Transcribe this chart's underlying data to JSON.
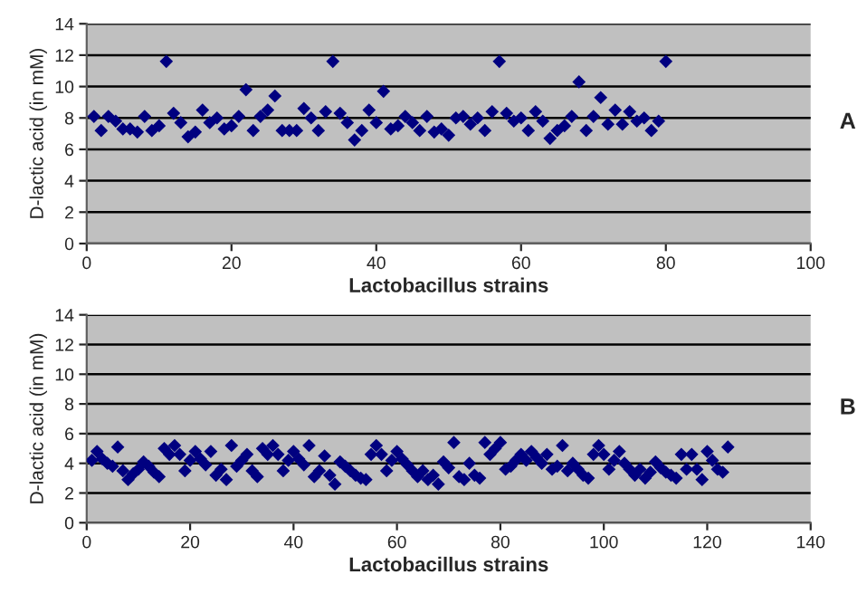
{
  "chart_data": [
    {
      "type": "scatter",
      "xlabel": "Lactobacillus strains",
      "ylabel": "D-lactic acid (in mM)",
      "annotations": [
        "A"
      ],
      "xlim": [
        0,
        100
      ],
      "ylim": [
        0,
        14
      ],
      "xticks": [
        0,
        20,
        40,
        60,
        80,
        100
      ],
      "yticks": [
        0,
        2,
        4,
        6,
        8,
        10,
        12,
        14
      ],
      "grid": "y",
      "marker": "diamond",
      "series": [
        {
          "color": "#000080",
          "x": [
            1,
            2,
            3,
            4,
            5,
            6,
            7,
            8,
            9,
            10,
            11,
            12,
            13,
            14,
            15,
            16,
            17,
            18,
            19,
            20,
            21,
            22,
            23,
            24,
            25,
            26,
            27,
            28,
            29,
            30,
            31,
            32,
            33,
            34,
            35,
            36,
            37,
            38,
            39,
            40,
            41,
            42,
            43,
            44,
            45,
            46,
            47,
            48,
            49,
            50,
            51,
            52,
            53,
            54,
            55,
            56,
            57,
            58,
            59,
            60,
            61,
            62,
            63,
            64,
            65,
            66,
            67,
            68,
            69,
            70,
            71,
            72,
            73,
            74,
            75,
            76,
            77,
            78,
            79,
            80
          ],
          "values": [
            8.1,
            7.2,
            8.1,
            7.8,
            7.3,
            7.3,
            7.1,
            8.1,
            7.2,
            7.5,
            11.6,
            8.3,
            7.7,
            6.8,
            7.1,
            8.5,
            7.7,
            8.0,
            7.3,
            7.5,
            8.1,
            9.8,
            7.2,
            8.1,
            8.5,
            9.4,
            7.2,
            7.2,
            7.2,
            8.6,
            8.0,
            7.2,
            8.4,
            11.6,
            8.3,
            7.7,
            6.6,
            7.2,
            8.5,
            7.7,
            9.7,
            7.3,
            7.5,
            8.1,
            7.7,
            7.2,
            8.1,
            7.1,
            7.3,
            6.9,
            8.0,
            8.1,
            7.6,
            8.0,
            7.2,
            8.4,
            11.6,
            8.3,
            7.8,
            8.0,
            7.2,
            8.4,
            7.8,
            6.7,
            7.2,
            7.5,
            8.1,
            10.3,
            7.2,
            8.1,
            9.3,
            7.6,
            8.5,
            7.6,
            8.4,
            7.8,
            8.0,
            7.2,
            7.8,
            11.6
          ]
        }
      ]
    },
    {
      "type": "scatter",
      "xlabel": "Lactobacillus strains",
      "ylabel": "D-lactic acid (in mM)",
      "annotations": [
        "B"
      ],
      "xlim": [
        0,
        140
      ],
      "ylim": [
        0,
        14
      ],
      "xticks": [
        0,
        20,
        40,
        60,
        80,
        100,
        120,
        140
      ],
      "yticks": [
        0,
        2,
        4,
        6,
        8,
        10,
        12,
        14
      ],
      "grid": "y",
      "marker": "diamond",
      "series": [
        {
          "color": "#000080",
          "x": [
            1,
            2,
            3,
            4,
            5,
            6,
            7,
            8,
            9,
            10,
            11,
            12,
            13,
            14,
            15,
            16,
            17,
            18,
            19,
            20,
            21,
            22,
            23,
            24,
            25,
            26,
            27,
            28,
            29,
            30,
            31,
            32,
            33,
            34,
            35,
            36,
            37,
            38,
            39,
            40,
            41,
            42,
            43,
            44,
            45,
            46,
            47,
            48,
            49,
            50,
            51,
            52,
            53,
            54,
            55,
            56,
            57,
            58,
            59,
            60,
            61,
            62,
            63,
            64,
            65,
            66,
            67,
            68,
            69,
            70,
            71,
            72,
            73,
            74,
            75,
            76,
            77,
            78,
            79,
            80,
            81,
            82,
            83,
            84,
            85,
            86,
            87,
            88,
            89,
            90,
            91,
            92,
            93,
            94,
            95,
            96,
            97,
            98,
            99,
            100,
            101,
            102,
            103,
            104,
            105,
            106,
            107,
            108,
            109,
            110,
            111,
            112,
            113,
            114,
            115,
            116,
            117,
            118,
            119,
            120,
            121,
            122,
            123,
            124
          ],
          "values": [
            4.2,
            4.8,
            4.3,
            4.0,
            3.8,
            5.1,
            3.5,
            2.9,
            3.3,
            3.6,
            4.1,
            3.8,
            3.4,
            3.1,
            5.0,
            4.6,
            5.2,
            4.6,
            3.5,
            4.2,
            4.8,
            4.3,
            3.9,
            4.8,
            3.2,
            3.6,
            2.9,
            5.2,
            3.8,
            4.2,
            4.6,
            3.5,
            3.1,
            5.0,
            4.6,
            5.2,
            4.6,
            3.5,
            4.2,
            4.8,
            4.3,
            3.9,
            5.2,
            3.1,
            3.5,
            4.5,
            3.2,
            2.6,
            4.1,
            3.8,
            3.5,
            3.2,
            3.0,
            2.9,
            4.6,
            5.2,
            4.6,
            3.5,
            4.2,
            4.8,
            4.3,
            3.9,
            3.5,
            3.1,
            3.5,
            2.9,
            3.2,
            2.6,
            4.1,
            3.7,
            5.4,
            3.1,
            2.9,
            4.0,
            3.2,
            3.0,
            5.4,
            4.6,
            5.0,
            5.4,
            3.6,
            3.8,
            4.2,
            4.6,
            4.2,
            4.8,
            4.4,
            4.0,
            4.6,
            3.6,
            3.8,
            5.2,
            3.5,
            4.0,
            3.6,
            3.2,
            3.0,
            4.6,
            5.2,
            4.6,
            3.6,
            4.2,
            4.8,
            4.0,
            3.6,
            3.2,
            3.6,
            3.0,
            3.4,
            4.1,
            3.7,
            3.4,
            3.2,
            3.0,
            4.6,
            3.6,
            4.6,
            3.6,
            2.9,
            4.8,
            4.2,
            3.6,
            3.4,
            5.1
          ]
        }
      ]
    }
  ]
}
